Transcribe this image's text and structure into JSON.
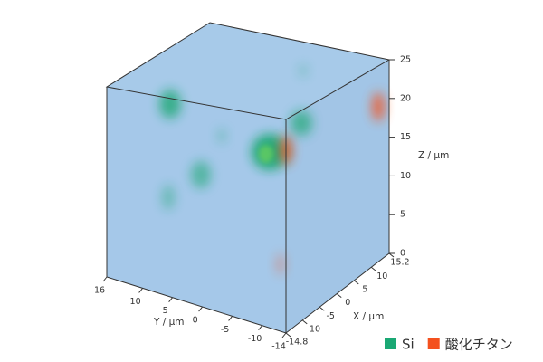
{
  "chart_data": {
    "type": "volume3d",
    "xlabel": "X / µm",
    "ylabel": "Y / µm",
    "zlabel": "Z / µm",
    "xlim": [
      -14.8,
      15.2
    ],
    "xticks": [
      -14.8,
      -10,
      -5,
      0,
      5,
      10,
      15.2
    ],
    "ylim": [
      -14,
      16
    ],
    "yticks": [
      16,
      10,
      5,
      0,
      -5,
      -10,
      -14
    ],
    "zlim": [
      0,
      25
    ],
    "zticks": [
      0,
      5,
      10,
      15,
      20,
      25
    ],
    "series": [
      {
        "name": "Si",
        "color": "#1aa874"
      },
      {
        "name": "酸化チタン",
        "color": "#f4511e"
      }
    ]
  }
}
